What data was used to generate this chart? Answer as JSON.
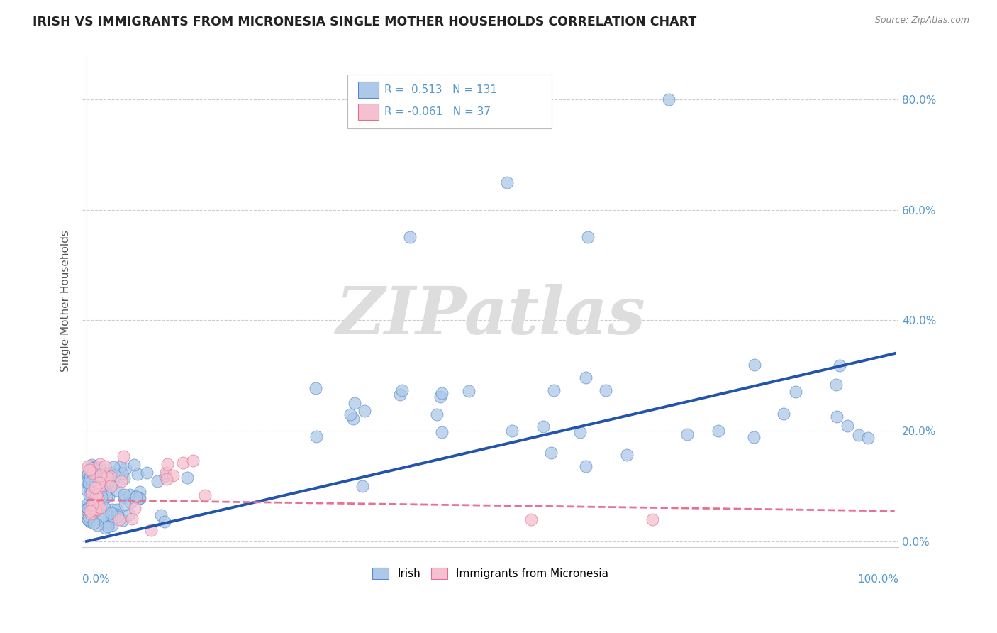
{
  "title": "IRISH VS IMMIGRANTS FROM MICRONESIA SINGLE MOTHER HOUSEHOLDS CORRELATION CHART",
  "source": "Source: ZipAtlas.com",
  "ylabel": "Single Mother Households",
  "legend_irish_R": 0.513,
  "legend_irish_N": 131,
  "legend_micro_R": -0.061,
  "legend_micro_N": 37,
  "irish_scatter_color": "#adc8e8",
  "irish_edge_color": "#5588cc",
  "micro_scatter_color": "#f5c0d0",
  "micro_edge_color": "#e07090",
  "irish_line_color": "#2255aa",
  "micro_line_color": "#e87090",
  "background_color": "#ffffff",
  "grid_color": "#cccccc",
  "title_color": "#222222",
  "axis_label_color": "#5599cc",
  "ylabel_color": "#555555",
  "source_color": "#888888",
  "watermark_text": "ZIPatlas",
  "watermark_color": "#dddddd",
  "ytick_vals": [
    0.0,
    0.2,
    0.4,
    0.6,
    0.8
  ],
  "ytick_labels": [
    "0.0%",
    "20.0%",
    "40.0%",
    "60.0%",
    "80.0%"
  ],
  "ylim": [
    -0.01,
    0.88
  ],
  "xlim": [
    -0.005,
    1.005
  ],
  "irish_line_x": [
    0.0,
    1.0
  ],
  "irish_line_y": [
    0.0,
    0.34
  ],
  "micro_line_x": [
    0.0,
    1.0
  ],
  "micro_line_y": [
    0.075,
    0.055
  ]
}
